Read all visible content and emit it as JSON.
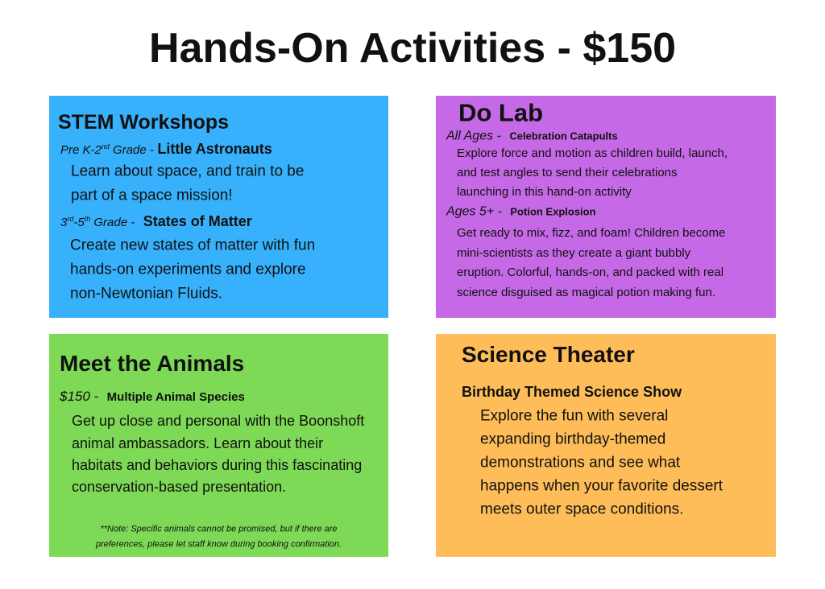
{
  "title": "Hands-On Activities - $150",
  "stem": {
    "heading": "STEM Workshops",
    "item1": {
      "label": [
        "Pre K-2",
        "nd",
        " Grade -"
      ],
      "name": "Little Astronauts",
      "description": [
        "Learn about space, and train to be",
        "part of a space mission!"
      ]
    },
    "item2": {
      "label": [
        "3",
        "rd",
        "-5",
        "th",
        " Grade -"
      ],
      "name": "States of Matter",
      "description": [
        "Create new states of matter with fun",
        "hands-on experiments and explore",
        "non-Newtonian Fluids."
      ]
    }
  },
  "do_lab": {
    "heading": "Do Lab",
    "item1": {
      "label": "All Ages -",
      "name": "Celebration Catapults",
      "description": [
        "Explore force and motion as children build, launch,",
        "and test angles to send their celebrations",
        "launching in this hand-on activity"
      ]
    },
    "item2": {
      "label": "Ages 5+ -",
      "name": "Potion Explosion",
      "description": [
        "Get ready to mix, fizz, and foam! Children become",
        "mini-scientists as they create a giant bubbly",
        "eruption. Colorful, hands-on, and packed with real",
        "science disguised as magical potion making fun."
      ]
    }
  },
  "animals": {
    "heading": "Meet the Animals",
    "label": "$150 -",
    "name": "Multiple Animal Species",
    "description": [
      "Get up close and personal with the Boonshoft",
      "animal ambassadors. Learn about their",
      "habitats and behaviors during this fascinating",
      "conservation-based presentation."
    ],
    "note": [
      "**Note: Specific animals cannot be promised, but if there are",
      "preferences, please let staff know during booking confirmation."
    ]
  },
  "theater": {
    "heading": "Science Theater",
    "name": "Birthday Themed Science Show",
    "description": [
      "Explore the fun with several",
      "expanding birthday-themed",
      "demonstrations and see what",
      "happens when your favorite dessert",
      "meets outer space conditions."
    ]
  }
}
